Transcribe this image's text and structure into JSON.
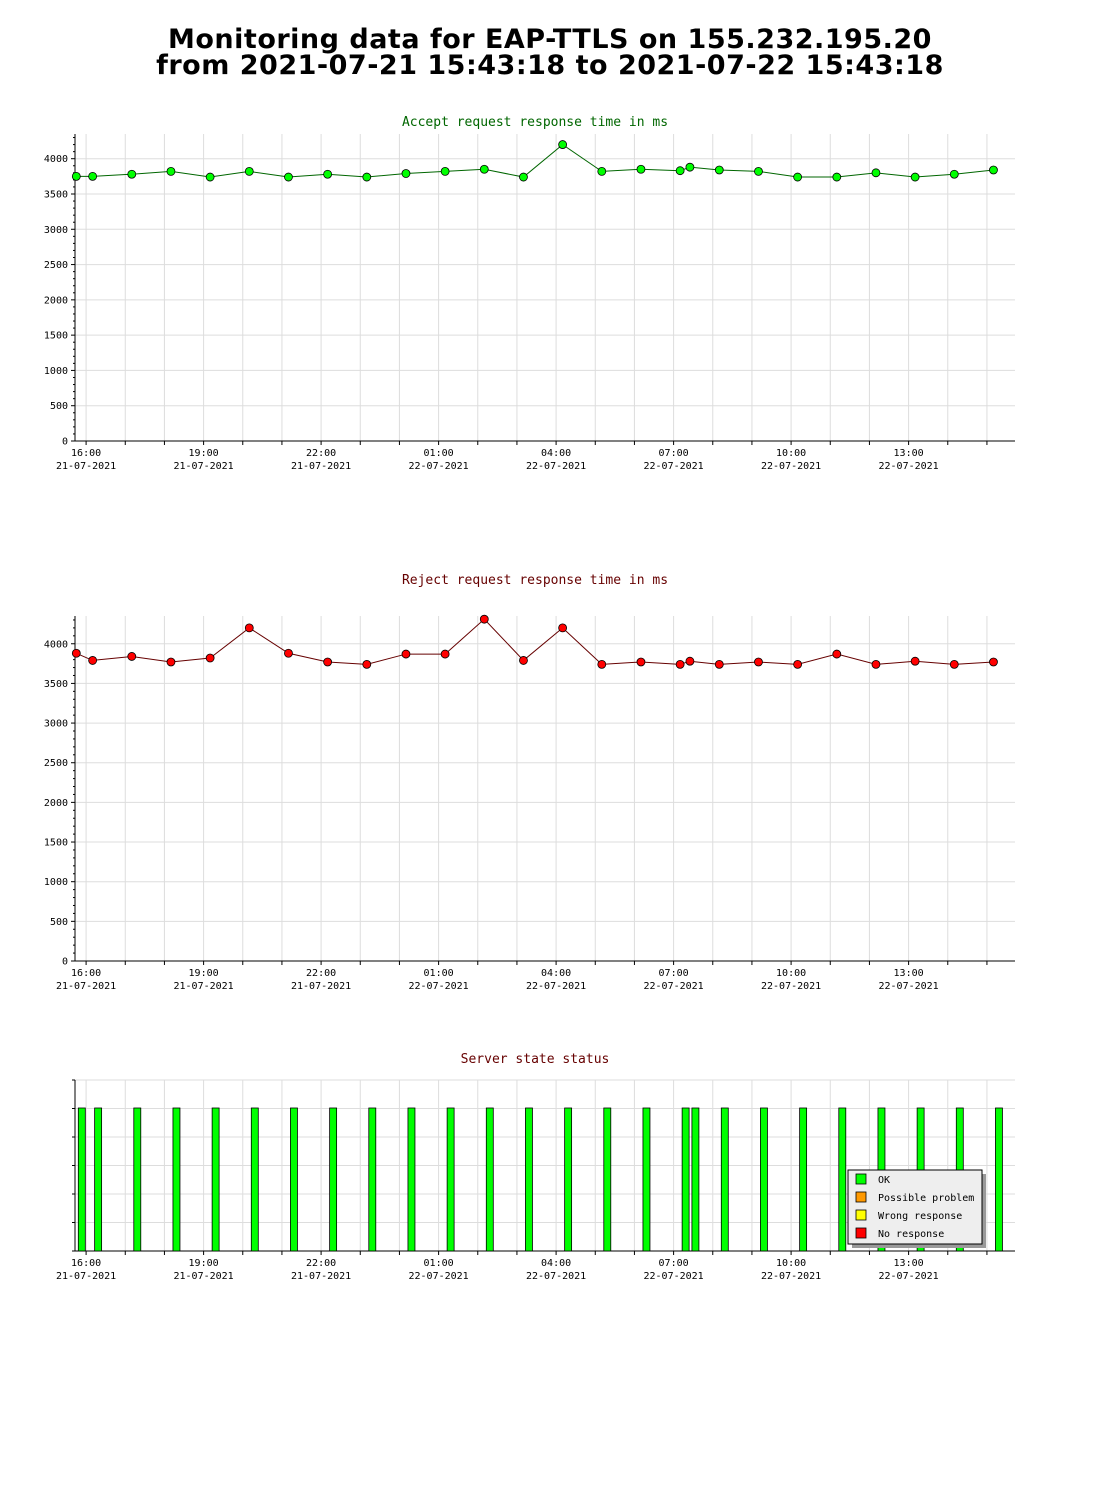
{
  "page": {
    "title_line1": "Monitoring data for EAP-TTLS on 155.232.195.20",
    "title_line2": "from 2021-07-21 15:43:18 to 2021-07-22 15:43:18"
  },
  "colors": {
    "accept_marker": "#00ff00",
    "accept_line": "#006600",
    "accept_title": "#006600",
    "reject_marker": "#ff0000",
    "reject_line": "#660000",
    "reject_title": "#660000",
    "status_title": "#660000",
    "ok": "#00ff00",
    "possible_problem": "#ff9900",
    "wrong_response": "#ffff00",
    "no_response": "#ff0000",
    "grid": "#dddddd",
    "legend_bg": "#eeeeee"
  },
  "chart_data": [
    {
      "type": "line",
      "title": "Accept request response time in ms",
      "xlabel": "",
      "ylabel": "",
      "x_unit": "hours since 2021-07-21 15:43",
      "ylim": [
        0,
        4350
      ],
      "yticks": [
        0,
        500,
        1000,
        1500,
        2000,
        2500,
        3000,
        3500,
        4000
      ],
      "xtick_labels": [
        {
          "time": "16:00",
          "date": "21-07-2021"
        },
        {
          "time": "19:00",
          "date": "21-07-2021"
        },
        {
          "time": "22:00",
          "date": "21-07-2021"
        },
        {
          "time": "01:00",
          "date": "22-07-2021"
        },
        {
          "time": "04:00",
          "date": "22-07-2021"
        },
        {
          "time": "07:00",
          "date": "22-07-2021"
        },
        {
          "time": "10:00",
          "date": "22-07-2021"
        },
        {
          "time": "13:00",
          "date": "22-07-2021"
        }
      ],
      "grid": true,
      "series": [
        {
          "name": "Accept",
          "points": [
            [
              "15:45",
              3750
            ],
            [
              "16:10",
              3750
            ],
            [
              "17:10",
              3780
            ],
            [
              "18:10",
              3820
            ],
            [
              "19:10",
              3740
            ],
            [
              "20:10",
              3820
            ],
            [
              "21:10",
              3740
            ],
            [
              "22:10",
              3780
            ],
            [
              "23:10",
              3740
            ],
            [
              "00:10",
              3790
            ],
            [
              "01:10",
              3820
            ],
            [
              "02:10",
              3850
            ],
            [
              "03:10",
              3740
            ],
            [
              "04:10",
              4200
            ],
            [
              "05:10",
              3820
            ],
            [
              "06:10",
              3850
            ],
            [
              "07:10",
              3830
            ],
            [
              "07:25",
              3880
            ],
            [
              "08:10",
              3840
            ],
            [
              "09:10",
              3820
            ],
            [
              "10:10",
              3740
            ],
            [
              "11:10",
              3740
            ],
            [
              "12:10",
              3800
            ],
            [
              "13:10",
              3740
            ],
            [
              "14:10",
              3780
            ],
            [
              "15:10",
              3840
            ]
          ]
        }
      ]
    },
    {
      "type": "line",
      "title": "Reject request response time in ms",
      "xlabel": "",
      "ylabel": "",
      "ylim": [
        0,
        4350
      ],
      "yticks": [
        0,
        500,
        1000,
        1500,
        2000,
        2500,
        3000,
        3500,
        4000
      ],
      "xtick_labels": [
        {
          "time": "16:00",
          "date": "21-07-2021"
        },
        {
          "time": "19:00",
          "date": "21-07-2021"
        },
        {
          "time": "22:00",
          "date": "21-07-2021"
        },
        {
          "time": "01:00",
          "date": "22-07-2021"
        },
        {
          "time": "04:00",
          "date": "22-07-2021"
        },
        {
          "time": "07:00",
          "date": "22-07-2021"
        },
        {
          "time": "10:00",
          "date": "22-07-2021"
        },
        {
          "time": "13:00",
          "date": "22-07-2021"
        }
      ],
      "grid": true,
      "series": [
        {
          "name": "Reject",
          "points": [
            [
              "15:45",
              3880
            ],
            [
              "16:10",
              3790
            ],
            [
              "17:10",
              3840
            ],
            [
              "18:10",
              3770
            ],
            [
              "19:10",
              3820
            ],
            [
              "20:10",
              4200
            ],
            [
              "21:10",
              3880
            ],
            [
              "22:10",
              3770
            ],
            [
              "23:10",
              3740
            ],
            [
              "00:10",
              3870
            ],
            [
              "01:10",
              3870
            ],
            [
              "02:10",
              4310
            ],
            [
              "03:10",
              3790
            ],
            [
              "04:10",
              4200
            ],
            [
              "05:10",
              3740
            ],
            [
              "06:10",
              3770
            ],
            [
              "07:10",
              3740
            ],
            [
              "07:25",
              3780
            ],
            [
              "08:10",
              3740
            ],
            [
              "09:10",
              3770
            ],
            [
              "10:10",
              3740
            ],
            [
              "11:10",
              3870
            ],
            [
              "12:10",
              3740
            ],
            [
              "13:10",
              3780
            ],
            [
              "14:10",
              3740
            ],
            [
              "15:10",
              3770
            ]
          ]
        }
      ]
    },
    {
      "type": "bar",
      "title": "Server state status",
      "xtick_labels": [
        {
          "time": "16:00",
          "date": "21-07-2021"
        },
        {
          "time": "19:00",
          "date": "21-07-2021"
        },
        {
          "time": "22:00",
          "date": "21-07-2021"
        },
        {
          "time": "01:00",
          "date": "22-07-2021"
        },
        {
          "time": "04:00",
          "date": "22-07-2021"
        },
        {
          "time": "07:00",
          "date": "22-07-2021"
        },
        {
          "time": "10:00",
          "date": "22-07-2021"
        },
        {
          "time": "13:00",
          "date": "22-07-2021"
        }
      ],
      "legend_position": "bottom-right",
      "legend": [
        {
          "label": "OK",
          "color_key": "ok"
        },
        {
          "label": "Possible problem",
          "color_key": "possible_problem"
        },
        {
          "label": "Wrong response",
          "color_key": "wrong_response"
        },
        {
          "label": "No response",
          "color_key": "no_response"
        }
      ],
      "bars": [
        {
          "time": "15:45",
          "status": "OK"
        },
        {
          "time": "16:10",
          "status": "OK"
        },
        {
          "time": "17:10",
          "status": "OK"
        },
        {
          "time": "18:10",
          "status": "OK"
        },
        {
          "time": "19:10",
          "status": "OK"
        },
        {
          "time": "20:10",
          "status": "OK"
        },
        {
          "time": "21:10",
          "status": "OK"
        },
        {
          "time": "22:10",
          "status": "OK"
        },
        {
          "time": "23:10",
          "status": "OK"
        },
        {
          "time": "00:10",
          "status": "OK"
        },
        {
          "time": "01:10",
          "status": "OK"
        },
        {
          "time": "02:10",
          "status": "OK"
        },
        {
          "time": "03:10",
          "status": "OK"
        },
        {
          "time": "04:10",
          "status": "OK"
        },
        {
          "time": "05:10",
          "status": "OK"
        },
        {
          "time": "06:10",
          "status": "OK"
        },
        {
          "time": "07:10",
          "status": "OK"
        },
        {
          "time": "07:25",
          "status": "OK"
        },
        {
          "time": "08:10",
          "status": "OK"
        },
        {
          "time": "09:10",
          "status": "OK"
        },
        {
          "time": "10:10",
          "status": "OK"
        },
        {
          "time": "11:10",
          "status": "OK"
        },
        {
          "time": "12:10",
          "status": "OK"
        },
        {
          "time": "13:10",
          "status": "OK"
        },
        {
          "time": "14:10",
          "status": "OK"
        },
        {
          "time": "15:10",
          "status": "OK"
        }
      ]
    }
  ]
}
